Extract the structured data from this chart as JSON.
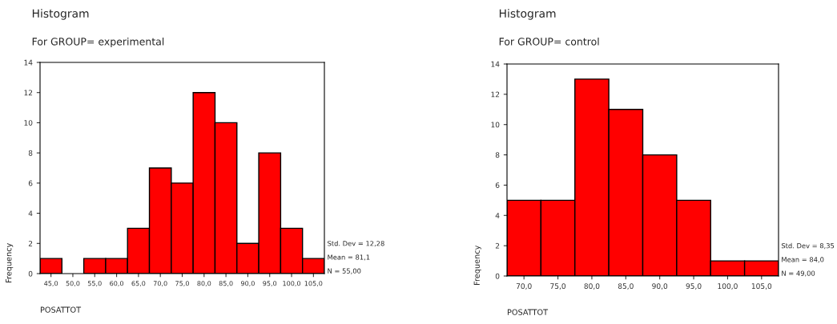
{
  "chart_data": [
    {
      "type": "histogram",
      "title": "Histogram",
      "subtitle": "For GROUP= experimental",
      "xlabel": "POSATTOT",
      "ylabel": "Frequency",
      "bins": [
        42.5,
        47.5,
        52.5,
        57.5,
        62.5,
        67.5,
        72.5,
        77.5,
        82.5,
        87.5,
        92.5,
        97.5,
        102.5,
        107.5
      ],
      "values": [
        1,
        0,
        1,
        1,
        3,
        7,
        6,
        12,
        10,
        2,
        8,
        3,
        1
      ],
      "color": "#ff0000",
      "xlim": [
        42.5,
        107.5
      ],
      "xticks": [
        {
          "value": 45,
          "label": "45,0"
        },
        {
          "value": 50,
          "label": "50,0"
        },
        {
          "value": 55,
          "label": "55,0"
        },
        {
          "value": 60,
          "label": "60,0"
        },
        {
          "value": 65,
          "label": "65,0"
        },
        {
          "value": 70,
          "label": "70,0"
        },
        {
          "value": 75,
          "label": "75,0"
        },
        {
          "value": 80,
          "label": "80,0"
        },
        {
          "value": 85,
          "label": "85,0"
        },
        {
          "value": 90,
          "label": "90,0"
        },
        {
          "value": 95,
          "label": "95,0"
        },
        {
          "value": 100,
          "label": "100,0"
        },
        {
          "value": 105,
          "label": "105,0"
        }
      ],
      "ylim": [
        0,
        14
      ],
      "yticks": [
        0,
        2,
        4,
        6,
        8,
        10,
        12,
        14
      ],
      "grid": false,
      "annotations": [
        "Std. Dev = 12,28",
        "Mean = 81,1",
        "N = 55,00"
      ]
    },
    {
      "type": "histogram",
      "title": "Histogram",
      "subtitle": "For GROUP= control",
      "xlabel": "POSATTOT",
      "ylabel": "Frequency",
      "bins": [
        67.5,
        72.5,
        77.5,
        82.5,
        87.5,
        92.5,
        97.5,
        102.5,
        107.5
      ],
      "values": [
        5,
        5,
        13,
        11,
        8,
        5,
        1,
        1
      ],
      "color": "#ff0000",
      "xlim": [
        67.5,
        107.5
      ],
      "xticks": [
        {
          "value": 70,
          "label": "70,0"
        },
        {
          "value": 75,
          "label": "75,0"
        },
        {
          "value": 80,
          "label": "80,0"
        },
        {
          "value": 85,
          "label": "85,0"
        },
        {
          "value": 90,
          "label": "90,0"
        },
        {
          "value": 95,
          "label": "95,0"
        },
        {
          "value": 100,
          "label": "100,0"
        },
        {
          "value": 105,
          "label": "105,0"
        }
      ],
      "ylim": [
        0,
        14
      ],
      "yticks": [
        0,
        2,
        4,
        6,
        8,
        10,
        12,
        14
      ],
      "grid": false,
      "annotations": [
        "Std. Dev = 8,35",
        "Mean = 84,0",
        "N = 49,00"
      ]
    }
  ]
}
